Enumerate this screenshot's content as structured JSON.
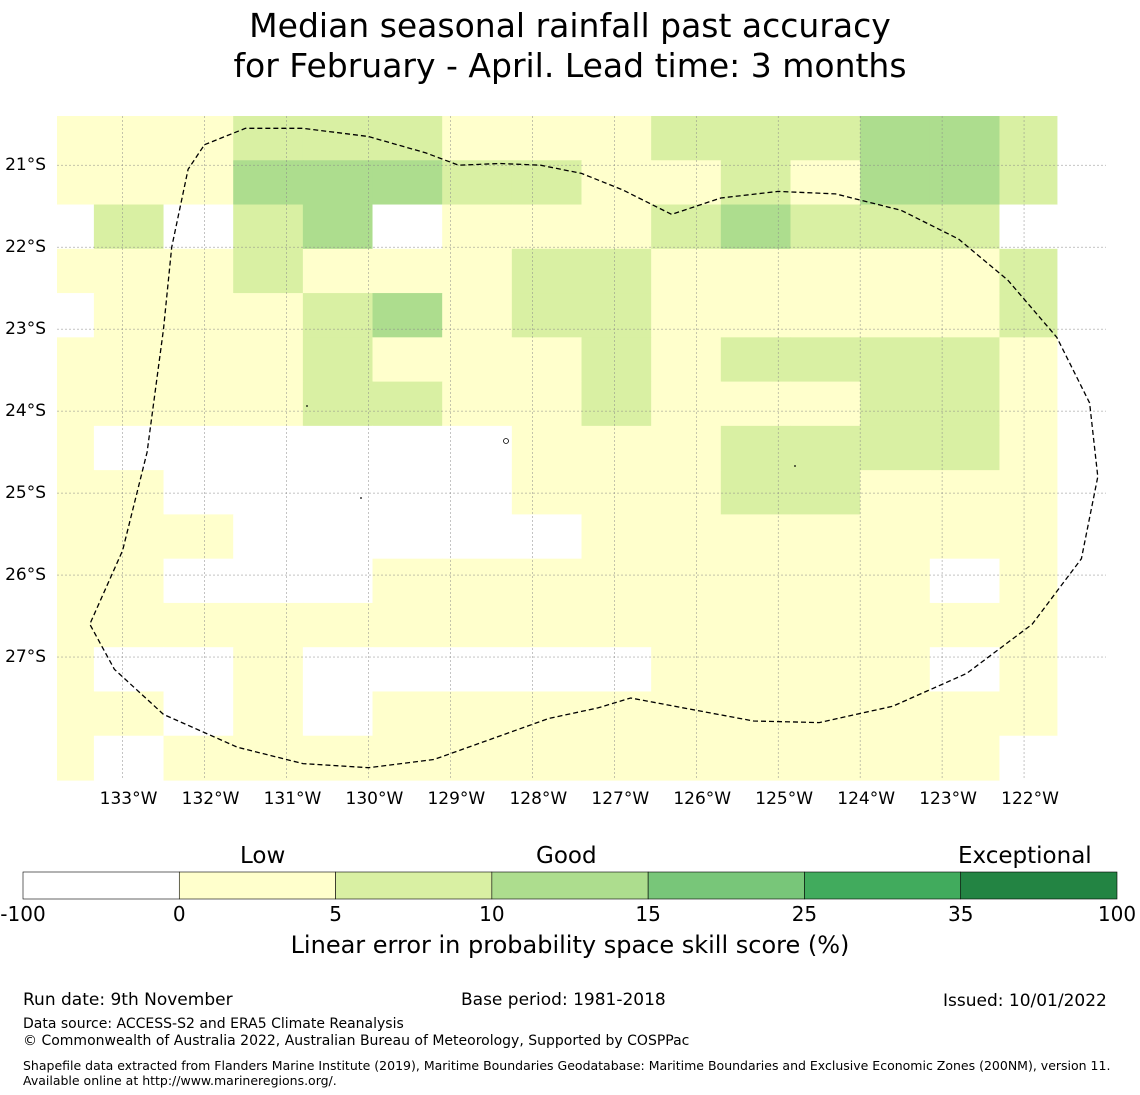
{
  "title": {
    "line1": "Median seasonal rainfall past accuracy",
    "line2": "for February - April. Lead time: 3 months"
  },
  "map": {
    "lon_range": [
      -133.8,
      -121.0
    ],
    "lat_range": [
      -28.5,
      -20.4
    ],
    "cell_size_deg": 0.5,
    "grid_origin_lon": -133.8,
    "grid_origin_lat": -20.45,
    "longitude_labels": [
      "133°W",
      "132°W",
      "131°W",
      "130°W",
      "129°W",
      "128°W",
      "127°W",
      "126°W",
      "125°W",
      "124°W",
      "123°W",
      "122°W"
    ],
    "longitude_values": [
      -133,
      -132,
      -131,
      -130,
      -129,
      -128,
      -127,
      -126,
      -125,
      -124,
      -123,
      -122
    ],
    "latitude_labels": [
      "21°S",
      "22°S",
      "23°S",
      "24°S",
      "25°S",
      "26°S",
      "27°S"
    ],
    "latitude_values": [
      -21,
      -22,
      -23,
      -24,
      -25,
      -26,
      -27
    ],
    "grid_col_widths_deg": [
      0.45,
      0.85,
      0.85,
      0.85,
      0.85,
      0.85,
      0.85,
      0.85,
      0.85,
      0.85,
      0.85,
      0.85,
      0.85,
      0.85,
      0.7
    ],
    "grid_category_rows": [
      "111222111222332",
      "111333221121332",
      "020230111232220",
      "111211122111112",
      "011123122111112",
      "111121112122221",
      "111122112111221",
      "100000011122221",
      "110000011122111",
      "111000001111111",
      "110001111111101",
      "111111111111111",
      "100100000111101",
      "110101111111111",
      "101111111111110"
    ],
    "boundary_polygon_lonlat": [
      [
        -132.0,
        -20.75
      ],
      [
        -131.5,
        -20.55
      ],
      [
        -130.8,
        -20.55
      ],
      [
        -130.0,
        -20.65
      ],
      [
        -129.3,
        -20.85
      ],
      [
        -128.9,
        -21.0
      ],
      [
        -128.4,
        -20.98
      ],
      [
        -127.9,
        -21.0
      ],
      [
        -127.4,
        -21.1
      ],
      [
        -126.9,
        -21.3
      ],
      [
        -126.3,
        -21.6
      ],
      [
        -125.7,
        -21.4
      ],
      [
        -125.0,
        -21.32
      ],
      [
        -124.3,
        -21.35
      ],
      [
        -123.5,
        -21.55
      ],
      [
        -122.8,
        -21.9
      ],
      [
        -122.2,
        -22.4
      ],
      [
        -121.6,
        -23.1
      ],
      [
        -121.2,
        -23.9
      ],
      [
        -121.1,
        -24.8
      ],
      [
        -121.3,
        -25.8
      ],
      [
        -121.9,
        -26.6
      ],
      [
        -122.7,
        -27.2
      ],
      [
        -123.6,
        -27.6
      ],
      [
        -124.5,
        -27.8
      ],
      [
        -125.3,
        -27.78
      ],
      [
        -126.0,
        -27.65
      ],
      [
        -126.8,
        -27.5
      ],
      [
        -127.2,
        -27.62
      ],
      [
        -127.8,
        -27.75
      ],
      [
        -128.5,
        -28.0
      ],
      [
        -129.2,
        -28.25
      ],
      [
        -130.0,
        -28.35
      ],
      [
        -130.8,
        -28.3
      ],
      [
        -131.6,
        -28.1
      ],
      [
        -132.5,
        -27.7
      ],
      [
        -133.1,
        -27.15
      ],
      [
        -133.4,
        -26.6
      ],
      [
        -133.0,
        -25.7
      ],
      [
        -132.7,
        -24.5
      ],
      [
        -132.5,
        -23.0
      ],
      [
        -132.4,
        -22.0
      ],
      [
        -132.2,
        -21.05
      ]
    ]
  },
  "colorbar": {
    "titles": {
      "low": "Low",
      "good": "Good",
      "exceptional": "Exceptional"
    },
    "tick_labels": [
      "-100",
      "0",
      "5",
      "10",
      "15",
      "25",
      "35",
      "100"
    ],
    "bins": [
      {
        "min": -100,
        "max": 0,
        "color": "#ffffff"
      },
      {
        "min": 0,
        "max": 5,
        "color": "#ffffcc"
      },
      {
        "min": 5,
        "max": 10,
        "color": "#d9f0a3"
      },
      {
        "min": 10,
        "max": 15,
        "color": "#addd8e"
      },
      {
        "min": 15,
        "max": 25,
        "color": "#78c679"
      },
      {
        "min": 25,
        "max": 35,
        "color": "#41ab5d"
      },
      {
        "min": 35,
        "max": 100,
        "color": "#238443"
      }
    ],
    "label": "Linear error in probability space skill score (%)"
  },
  "footer": {
    "run_date": "Run date: 9th November",
    "base_period": "Base period: 1981-2018",
    "issued": "Issued: 10/01/2022",
    "data_source": "Data source: ACCESS-S2 and ERA5 Climate Reanalysis",
    "copyright": "© Commonwealth of Australia 2022, Australian Bureau of Meteorology, Supported by COSPPac",
    "shapefile": "Shapefile data extracted from Flanders Marine Institute (2019), Maritime Boundaries Geodatabase: Maritime Boundaries and Exclusive Economic Zones (200NM), version 11. Available online at http://www.marineregions.org/."
  }
}
